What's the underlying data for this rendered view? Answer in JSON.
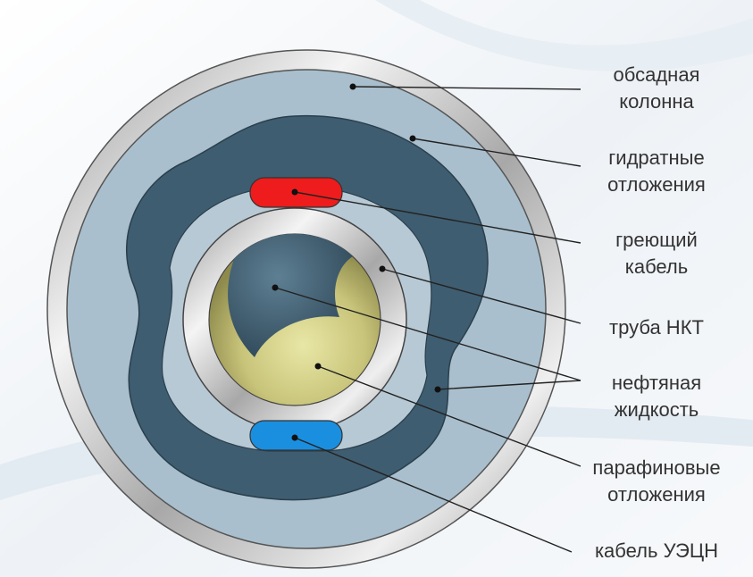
{
  "labels": [
    {
      "lines": [
        "обсадная",
        "колонна"
      ]
    },
    {
      "lines": [
        "гидратные",
        "отложения"
      ]
    },
    {
      "lines": [
        "греющий",
        "кабель"
      ]
    },
    {
      "lines": [
        "труба НКТ"
      ]
    },
    {
      "lines": [
        "нефтяная",
        "жидкость"
      ]
    },
    {
      "lines": [
        "парафиновые",
        "отложения"
      ]
    },
    {
      "lines": [
        "кабель УЭЦН"
      ]
    }
  ]
}
